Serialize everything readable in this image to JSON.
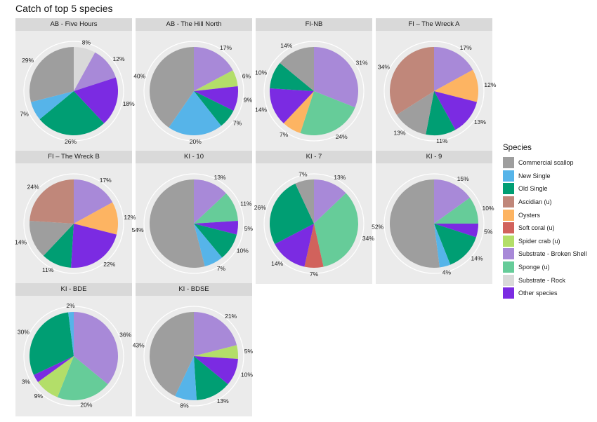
{
  "chart_data": {
    "type": "pie",
    "title": "Catch of top 5 species",
    "legend": {
      "title": "Species",
      "placement": "right",
      "entries": [
        {
          "name": "Commercial scallop",
          "color": "#9e9e9e"
        },
        {
          "name": "New Single",
          "color": "#56b4e9"
        },
        {
          "name": "Old Single",
          "color": "#009e73"
        },
        {
          "name": "Ascidian (u)",
          "color": "#c0877a"
        },
        {
          "name": "Oysters",
          "color": "#fdb462"
        },
        {
          "name": "Soft coral (u)",
          "color": "#d1625c"
        },
        {
          "name": "Spider crab (u)",
          "color": "#b3de69"
        },
        {
          "name": "Substrate - Broken Shell",
          "color": "#a889d8"
        },
        {
          "name": "Sponge (u)",
          "color": "#66cc99"
        },
        {
          "name": "Substrate - Rock",
          "color": "#d9d9d9"
        },
        {
          "name": "Other species",
          "color": "#7b2be2"
        }
      ]
    },
    "panels": [
      {
        "label": "AB - Five Hours",
        "slices": [
          {
            "species": "Substrate - Rock",
            "value": 8,
            "label": "8%"
          },
          {
            "species": "Substrate - Broken Shell",
            "value": 12,
            "label": "12%"
          },
          {
            "species": "Other species",
            "value": 18,
            "label": "18%"
          },
          {
            "species": "Old Single",
            "value": 26,
            "label": "26%"
          },
          {
            "species": "New Single",
            "value": 7,
            "label": "7%"
          },
          {
            "species": "Commercial scallop",
            "value": 29,
            "label": "29%"
          }
        ]
      },
      {
        "label": "AB - The Hill North",
        "slices": [
          {
            "species": "Substrate - Broken Shell",
            "value": 17,
            "label": "17%"
          },
          {
            "species": "Spider crab (u)",
            "value": 6,
            "label": "6%"
          },
          {
            "species": "Other species",
            "value": 9,
            "label": "9%"
          },
          {
            "species": "Old Single",
            "value": 7,
            "label": "7%"
          },
          {
            "species": "New Single",
            "value": 20,
            "label": "20%"
          },
          {
            "species": "Commercial scallop",
            "value": 40,
            "label": "40%"
          }
        ]
      },
      {
        "label": "FI-NB",
        "slices": [
          {
            "species": "Substrate - Broken Shell",
            "value": 31,
            "label": "31%"
          },
          {
            "species": "Sponge (u)",
            "value": 24,
            "label": "24%"
          },
          {
            "species": "Oysters",
            "value": 7,
            "label": "7%"
          },
          {
            "species": "Other species",
            "value": 14,
            "label": "14%"
          },
          {
            "species": "Old Single",
            "value": 10,
            "label": "10%"
          },
          {
            "species": "Commercial scallop",
            "value": 14,
            "label": "14%"
          }
        ]
      },
      {
        "label": "FI – The Wreck A",
        "slices": [
          {
            "species": "Substrate - Broken Shell",
            "value": 17,
            "label": "17%"
          },
          {
            "species": "Oysters",
            "value": 12,
            "label": "12%"
          },
          {
            "species": "Other species",
            "value": 13,
            "label": "13%"
          },
          {
            "species": "Old Single",
            "value": 11,
            "label": "11%"
          },
          {
            "species": "Commercial scallop",
            "value": 13,
            "label": "13%"
          },
          {
            "species": "Ascidian (u)",
            "value": 34,
            "label": "34%"
          }
        ]
      },
      {
        "label": "FI – The Wreck B",
        "slices": [
          {
            "species": "Substrate - Broken Shell",
            "value": 17,
            "label": "17%"
          },
          {
            "species": "Oysters",
            "value": 12,
            "label": "12%"
          },
          {
            "species": "Other species",
            "value": 22,
            "label": "22%"
          },
          {
            "species": "Old Single",
            "value": 11,
            "label": "11%"
          },
          {
            "species": "Commercial scallop",
            "value": 14,
            "label": "14%"
          },
          {
            "species": "Ascidian (u)",
            "value": 24,
            "label": "24%"
          }
        ]
      },
      {
        "label": "KI - 10",
        "slices": [
          {
            "species": "Substrate - Broken Shell",
            "value": 13,
            "label": "13%"
          },
          {
            "species": "Sponge (u)",
            "value": 11,
            "label": "11%"
          },
          {
            "species": "Other species",
            "value": 5,
            "label": "5%"
          },
          {
            "species": "Old Single",
            "value": 10,
            "label": "10%"
          },
          {
            "species": "New Single",
            "value": 7,
            "label": "7%"
          },
          {
            "species": "Commercial scallop",
            "value": 54,
            "label": "54%"
          }
        ]
      },
      {
        "label": "KI - 7",
        "slices": [
          {
            "species": "Substrate - Broken Shell",
            "value": 13,
            "label": "13%"
          },
          {
            "species": "Sponge (u)",
            "value": 34,
            "label": "34%"
          },
          {
            "species": "Soft coral (u)",
            "value": 7,
            "label": "7%"
          },
          {
            "species": "Other species",
            "value": 14,
            "label": "14%"
          },
          {
            "species": "Old Single",
            "value": 26,
            "label": "26%"
          },
          {
            "species": "Commercial scallop",
            "value": 7,
            "label": "7%"
          }
        ]
      },
      {
        "label": "KI - 9",
        "slices": [
          {
            "species": "Substrate - Broken Shell",
            "value": 15,
            "label": "15%"
          },
          {
            "species": "Sponge (u)",
            "value": 10,
            "label": "10%"
          },
          {
            "species": "Other species",
            "value": 5,
            "label": "5%"
          },
          {
            "species": "Old Single",
            "value": 14,
            "label": "14%"
          },
          {
            "species": "New Single",
            "value": 4,
            "label": "4%"
          },
          {
            "species": "Commercial scallop",
            "value": 52,
            "label": "52%"
          }
        ]
      },
      {
        "label": "KI - BDE",
        "slices": [
          {
            "species": "Substrate - Broken Shell",
            "value": 36,
            "label": "36%"
          },
          {
            "species": "Sponge (u)",
            "value": 20,
            "label": "20%"
          },
          {
            "species": "Spider crab (u)",
            "value": 9,
            "label": "9%"
          },
          {
            "species": "Other species",
            "value": 3,
            "label": "3%"
          },
          {
            "species": "Old Single",
            "value": 30,
            "label": "30%"
          },
          {
            "species": "New Single",
            "value": 2,
            "label": "2%"
          }
        ]
      },
      {
        "label": "KI - BDSE",
        "slices": [
          {
            "species": "Substrate - Broken Shell",
            "value": 21,
            "label": "21%"
          },
          {
            "species": "Spider crab (u)",
            "value": 5,
            "label": "5%"
          },
          {
            "species": "Other species",
            "value": 10,
            "label": "10%"
          },
          {
            "species": "Old Single",
            "value": 13,
            "label": "13%"
          },
          {
            "species": "New Single",
            "value": 8,
            "label": "8%"
          },
          {
            "species": "Commercial scallop",
            "value": 43,
            "label": "43%"
          }
        ]
      }
    ]
  }
}
